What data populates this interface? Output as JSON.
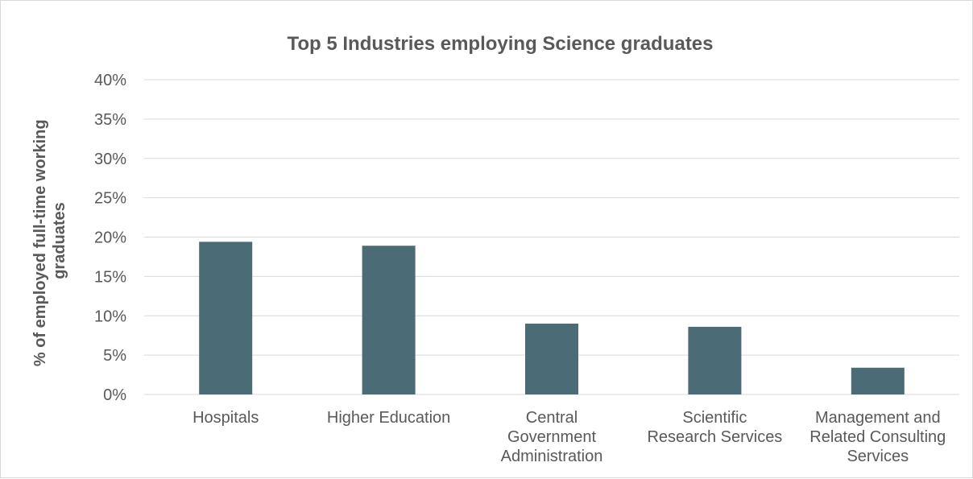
{
  "chart_data": {
    "type": "bar",
    "title": "Top 5 Industries employing Science graduates",
    "ylabel_lines": [
      "% of employed full-time working",
      "graduates"
    ],
    "xlabel": "",
    "categories": [
      "Hospitals",
      "Higher Education",
      "Central Government Administration",
      "Scientific Research Services",
      "Management and Related Consulting Services"
    ],
    "category_lines": [
      [
        "Hospitals"
      ],
      [
        "Higher Education"
      ],
      [
        "Central",
        "Government",
        "Administration"
      ],
      [
        "Scientific",
        "Research Services"
      ],
      [
        "Management and",
        "Related Consulting",
        "Services"
      ]
    ],
    "values": [
      19.4,
      18.9,
      9.0,
      8.6,
      3.4
    ],
    "ylim": [
      0,
      40
    ],
    "yticks": [
      0,
      5,
      10,
      15,
      20,
      25,
      30,
      35,
      40
    ],
    "ytick_labels": [
      "0%",
      "5%",
      "10%",
      "15%",
      "20%",
      "25%",
      "30%",
      "35%",
      "40%"
    ],
    "grid": true,
    "legend": "none",
    "colors": {
      "bar": "#4b6b77",
      "grid": "#d9d9d9",
      "text": "#595959"
    }
  }
}
